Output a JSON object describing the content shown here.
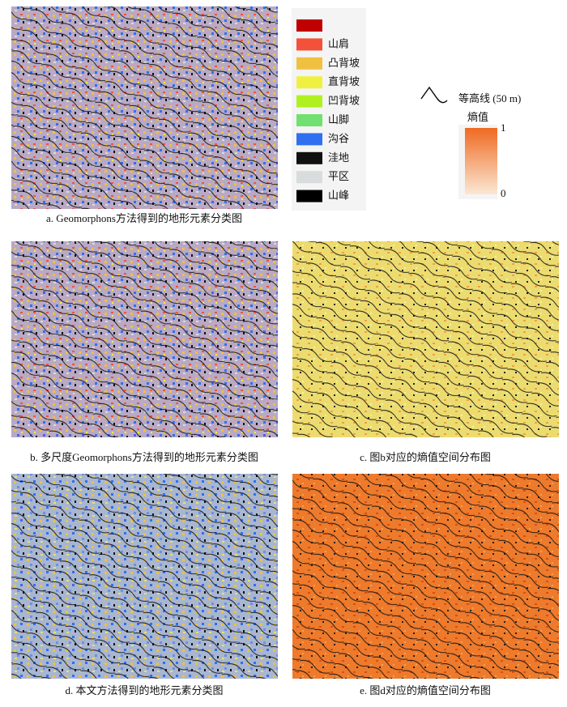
{
  "legend": {
    "items": [
      {
        "color": "#c00000"
      },
      {
        "color": "#f4513a",
        "label": "山肩"
      },
      {
        "color": "#f0c040",
        "label": "凸背坡"
      },
      {
        "color": "#f0f040",
        "label": "直背坡"
      },
      {
        "color": "#b0f020",
        "label": "凹背坡"
      },
      {
        "color": "#70e070",
        "label": "山脚"
      },
      {
        "color": "#3070f0",
        "label": "沟谷"
      },
      {
        "color": "#101010",
        "label": "洼地"
      },
      {
        "color": "#d8dcdc",
        "label": "平区"
      },
      {
        "color": "#000000",
        "label": "山峰"
      }
    ]
  },
  "contour_legend": {
    "label": "等高线 (50 m)"
  },
  "entropy_legend": {
    "title": "熵值",
    "max": 1,
    "min": 0
  },
  "panels": [
    {
      "caption": "a. Geomorphons方法得到的地形元素分类图"
    },
    {
      "caption": "b. 多尺度Geomorphons方法得到的地形元素分类图"
    },
    {
      "caption": "c. 图b对应的熵值空间分布图"
    },
    {
      "caption": "d. 本文方法得到的地形元素分类图"
    },
    {
      "caption": "e. 图d对应的熵值空间分布图"
    }
  ]
}
